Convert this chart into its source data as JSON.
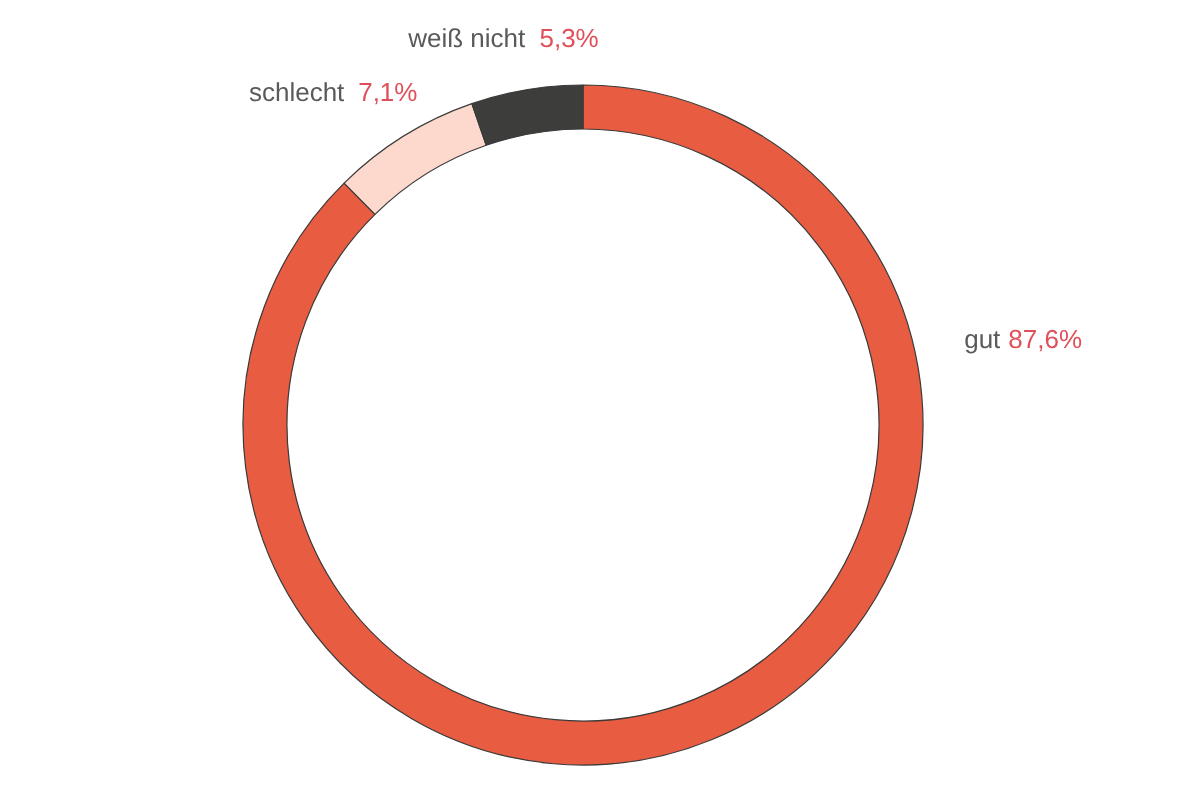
{
  "chart_data": {
    "type": "donut",
    "categories": [
      "gut",
      "schlecht",
      "weiß nicht"
    ],
    "values": [
      87.6,
      7.1,
      5.3
    ],
    "colors": [
      "#e85c41",
      "#fdd8cd",
      "#3d3d3b"
    ],
    "value_labels": [
      "87,6%",
      "7,1%",
      "5,3%"
    ]
  }
}
